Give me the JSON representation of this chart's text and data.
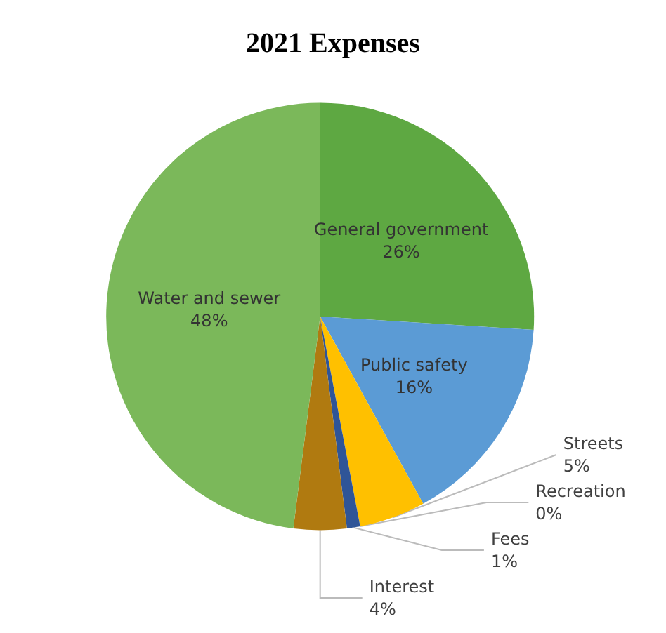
{
  "chart_data": {
    "type": "pie",
    "title": "2021 Expenses",
    "categories": [
      "General government",
      "Public safety",
      "Streets",
      "Recreation",
      "Fees",
      "Interest",
      "Water and sewer"
    ],
    "values": [
      26,
      16,
      5,
      0,
      1,
      4,
      48
    ],
    "value_labels": [
      "26%",
      "16%",
      "5%",
      "0%",
      "1%",
      "4%",
      "48%"
    ],
    "colors": [
      "#5ea842",
      "#5b9bd5",
      "#ffc000",
      "#3f6e2e",
      "#2f5597",
      "#b07a10",
      "#7bb85a"
    ],
    "legend": false
  }
}
